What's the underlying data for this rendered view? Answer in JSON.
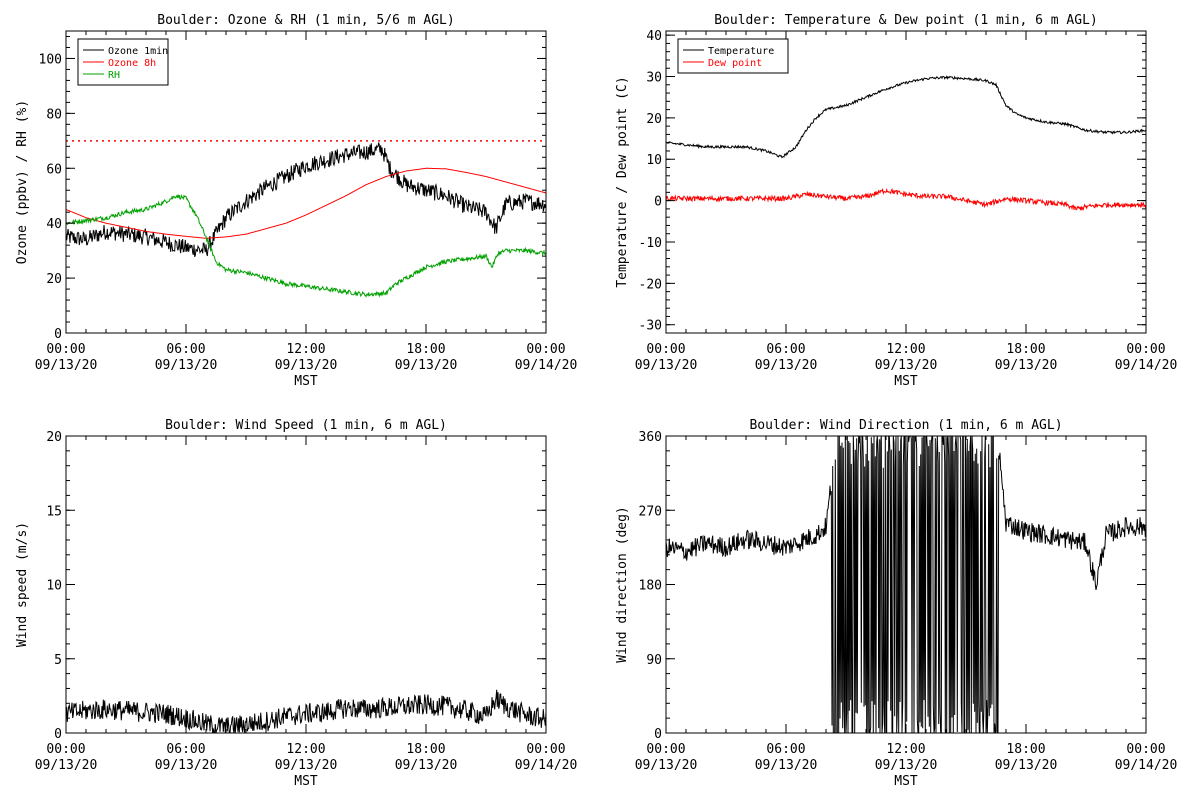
{
  "chart_data": [
    {
      "type": "line",
      "title": "Boulder: Ozone & RH (1 min, 5/6 m AGL)",
      "xlabel": "MST",
      "ylabel": "Ozone (ppbv) / RH (%)",
      "xlim": [
        0,
        24
      ],
      "ylim": [
        0,
        110
      ],
      "yticks": [
        0,
        20,
        40,
        60,
        80,
        100
      ],
      "xticks": [
        0,
        6,
        12,
        18,
        24
      ],
      "xtick_labels": [
        [
          "00:00",
          "09/13/20"
        ],
        [
          "06:00",
          "09/13/20"
        ],
        [
          "12:00",
          "09/13/20"
        ],
        [
          "18:00",
          "09/13/20"
        ],
        [
          "00:00",
          "09/14/20"
        ]
      ],
      "legend_position": "top-left",
      "reference_line": {
        "y": 70,
        "style": "dotted",
        "color": "#ff0000"
      },
      "series": [
        {
          "name": "Ozone 1min",
          "color": "#000000",
          "noise": 3,
          "x": [
            0,
            1,
            2,
            3,
            4,
            5,
            6,
            7,
            8,
            9,
            10,
            11,
            12,
            13,
            14,
            15,
            15.8,
            16.2,
            17,
            18,
            19,
            20,
            21,
            21.5,
            22,
            23,
            24
          ],
          "y": [
            35,
            34,
            37,
            36,
            35,
            33,
            31,
            30,
            42,
            48,
            53,
            57,
            61,
            63,
            65,
            66,
            67,
            60,
            54,
            52,
            50,
            46,
            44,
            38,
            47,
            48,
            47
          ]
        },
        {
          "name": "Ozone 8h",
          "color": "#ff0000",
          "noise": 0,
          "x": [
            0,
            1,
            2,
            3,
            4,
            5,
            6,
            7,
            8,
            9,
            10,
            11,
            12,
            13,
            14,
            15,
            16,
            17,
            18,
            19,
            20,
            21,
            22,
            23,
            24
          ],
          "y": [
            45,
            42,
            40,
            38.5,
            37,
            36,
            35.2,
            34.5,
            35,
            36,
            38,
            40,
            43,
            46.5,
            50,
            54,
            57,
            59,
            60,
            59.8,
            58.5,
            57,
            55,
            53,
            51
          ]
        },
        {
          "name": "RH",
          "color": "#00a000",
          "noise": 0.8,
          "x": [
            0,
            1,
            2,
            3,
            4,
            5,
            5.5,
            6,
            6.5,
            7,
            7.5,
            8,
            9,
            10,
            11,
            12,
            13,
            14,
            15,
            16,
            16.5,
            17,
            18,
            19,
            20,
            21,
            21.3,
            21.6,
            22,
            23,
            24
          ],
          "y": [
            40,
            41,
            42,
            44,
            45,
            48,
            50,
            49,
            43,
            35,
            26,
            23,
            22,
            20,
            18,
            17,
            16,
            15,
            14,
            14.5,
            18,
            20,
            24,
            26,
            27,
            28,
            24,
            29,
            30,
            30,
            29
          ]
        }
      ]
    },
    {
      "type": "line",
      "title": "Boulder: Temperature & Dew point (1 min, 6 m AGL)",
      "xlabel": "MST",
      "ylabel": "Temperature / Dew point (C)",
      "xlim": [
        0,
        24
      ],
      "ylim": [
        -32,
        41
      ],
      "yticks": [
        -30,
        -20,
        -10,
        0,
        10,
        20,
        30,
        40
      ],
      "xticks": [
        0,
        6,
        12,
        18,
        24
      ],
      "xtick_labels": [
        [
          "00:00",
          "09/13/20"
        ],
        [
          "06:00",
          "09/13/20"
        ],
        [
          "12:00",
          "09/13/20"
        ],
        [
          "18:00",
          "09/13/20"
        ],
        [
          "00:00",
          "09/14/20"
        ]
      ],
      "legend_position": "top-left",
      "series": [
        {
          "name": "Temperature",
          "color": "#000000",
          "noise": 0.3,
          "x": [
            0,
            1,
            2,
            3,
            4,
            5,
            5.8,
            6.5,
            7,
            7.5,
            8,
            9,
            10,
            11,
            12,
            13,
            14,
            15,
            16,
            16.5,
            17,
            17.5,
            18,
            19,
            20,
            21,
            22,
            23,
            24
          ],
          "y": [
            14,
            13.5,
            13,
            13,
            13,
            12,
            10.5,
            13,
            17,
            20,
            22,
            23,
            25,
            27,
            28.5,
            29.5,
            29.8,
            29.5,
            29,
            28,
            23,
            21,
            20,
            19,
            18.5,
            17,
            16.5,
            16.5,
            17
          ]
        },
        {
          "name": "Dew point",
          "color": "#ff0000",
          "noise": 0.6,
          "x": [
            0,
            2,
            4,
            5,
            6,
            7,
            8,
            9,
            10,
            11,
            12,
            13,
            14,
            15,
            16,
            17,
            18,
            19,
            20,
            20.5,
            21,
            22,
            23,
            24
          ],
          "y": [
            0.5,
            0.5,
            0.5,
            0.5,
            0.5,
            1.5,
            1,
            0.5,
            1,
            2.5,
            1.5,
            1,
            1,
            0,
            -1,
            0.5,
            0,
            -0.5,
            -1,
            -2,
            -1.5,
            -1,
            -1,
            -1
          ]
        }
      ]
    },
    {
      "type": "line",
      "title": "Boulder: Wind Speed (1 min, 6 m AGL)",
      "xlabel": "MST",
      "ylabel": "Wind speed (m/s)",
      "xlim": [
        0,
        24
      ],
      "ylim": [
        0,
        20
      ],
      "yticks": [
        0,
        5,
        10,
        15,
        20
      ],
      "xticks": [
        0,
        6,
        12,
        18,
        24
      ],
      "xtick_labels": [
        [
          "00:00",
          "09/13/20"
        ],
        [
          "06:00",
          "09/13/20"
        ],
        [
          "12:00",
          "09/13/20"
        ],
        [
          "18:00",
          "09/13/20"
        ],
        [
          "00:00",
          "09/14/20"
        ]
      ],
      "series": [
        {
          "name": "",
          "color": "#000000",
          "noise": 0.7,
          "x": [
            0,
            1,
            2,
            3,
            4,
            5,
            6,
            7,
            8,
            9,
            10,
            11,
            12,
            13,
            14,
            15,
            16,
            17,
            18,
            19,
            20,
            21,
            21.5,
            22,
            23,
            24
          ],
          "y": [
            1.3,
            1.5,
            1.6,
            1.5,
            1.4,
            1.3,
            1.0,
            0.6,
            0.4,
            0.6,
            0.8,
            1.1,
            1.3,
            1.4,
            1.7,
            1.6,
            1.7,
            1.8,
            1.9,
            1.8,
            1.5,
            1.1,
            2.3,
            1.8,
            1.2,
            0.9
          ]
        }
      ]
    },
    {
      "type": "line",
      "title": "Boulder: Wind Direction (1 min, 6 m AGL)",
      "xlabel": "MST",
      "ylabel": "Wind direction (deg)",
      "xlim": [
        0,
        24
      ],
      "ylim": [
        0,
        360
      ],
      "yticks": [
        0,
        90,
        180,
        270,
        360
      ],
      "xticks": [
        0,
        6,
        12,
        18,
        24
      ],
      "xtick_labels": [
        [
          "00:00",
          "09/13/20"
        ],
        [
          "06:00",
          "09/13/20"
        ],
        [
          "12:00",
          "09/13/20"
        ],
        [
          "18:00",
          "09/13/20"
        ],
        [
          "00:00",
          "09/14/20"
        ]
      ],
      "series": [
        {
          "name": "",
          "color": "#000000",
          "noise": 12,
          "x": [
            0,
            1,
            2,
            3,
            4,
            5,
            6,
            7,
            7.5,
            8,
            8.25,
            16.7,
            17,
            18,
            19,
            20,
            21,
            21.5,
            22,
            23,
            24
          ],
          "y": [
            225,
            220,
            230,
            225,
            235,
            230,
            225,
            235,
            240,
            250,
            300,
            330,
            255,
            245,
            240,
            235,
            230,
            180,
            240,
            250,
            250
          ],
          "oscillation": {
            "from": 8.3,
            "to": 16.6,
            "low": 0,
            "high": 360
          }
        }
      ]
    }
  ]
}
